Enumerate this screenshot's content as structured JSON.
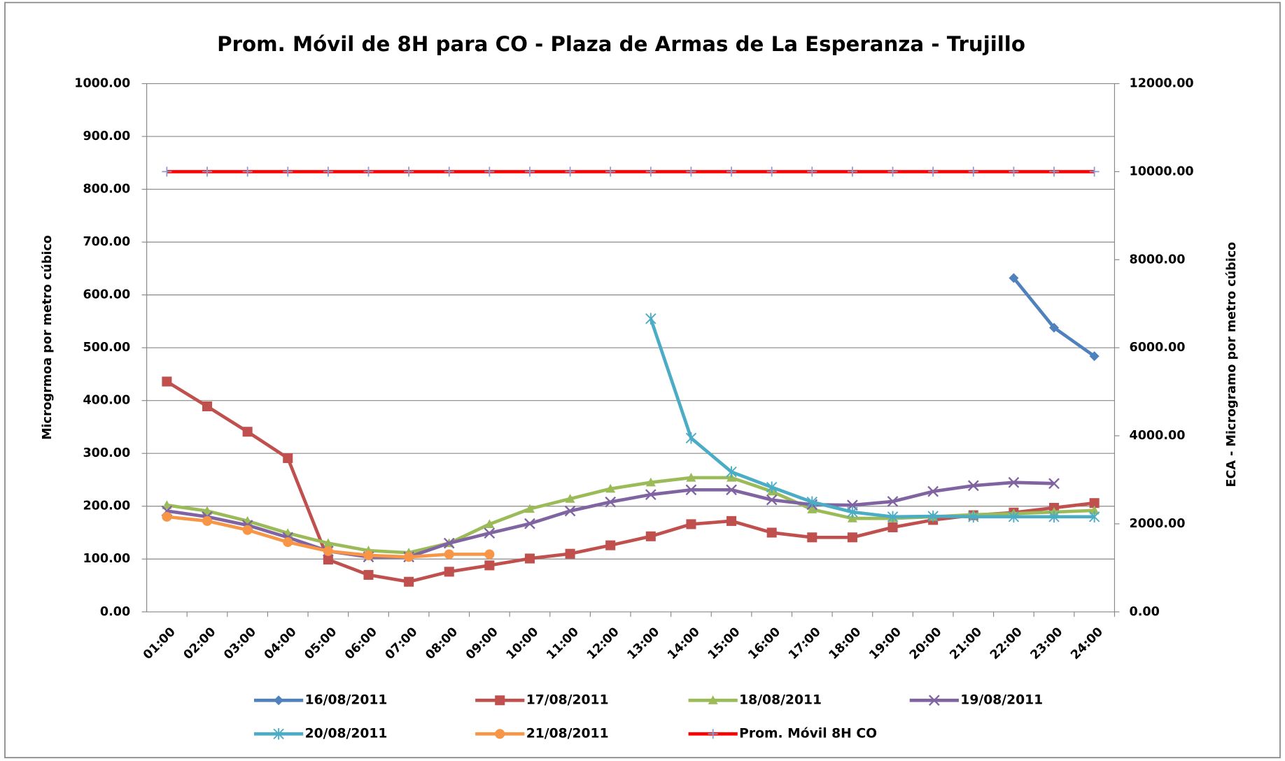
{
  "chart_data": {
    "type": "line",
    "title": "Prom. Móvil de 8H para CO - Plaza de Armas de La Esperanza - Trujillo",
    "ylabel": "Microgrmoa  por metro cúbico",
    "y2label": "ECA - Microgramo  por metro cúbico",
    "categories": [
      "01:00",
      "02:00",
      "03:00",
      "04:00",
      "05:00",
      "06:00",
      "07:00",
      "08:00",
      "09:00",
      "10:00",
      "11:00",
      "12:00",
      "13:00",
      "14:00",
      "15:00",
      "16:00",
      "17:00",
      "18:00",
      "19:00",
      "20:00",
      "21:00",
      "22:00",
      "23:00",
      "24:00"
    ],
    "ylim": [
      0,
      1000
    ],
    "yticks": [
      {
        "value": 0,
        "label": "0.00"
      },
      {
        "value": 100,
        "label": "100.00"
      },
      {
        "value": 200,
        "label": "200.00"
      },
      {
        "value": 300,
        "label": "300.00"
      },
      {
        "value": 400,
        "label": "400.00"
      },
      {
        "value": 500,
        "label": "500.00"
      },
      {
        "value": 600,
        "label": "600.00"
      },
      {
        "value": 700,
        "label": "700.00"
      },
      {
        "value": 800,
        "label": "800.00"
      },
      {
        "value": 900,
        "label": "900.00"
      },
      {
        "value": 1000,
        "label": "1000.00"
      }
    ],
    "y2lim": [
      0,
      12000
    ],
    "y2ticks": [
      {
        "value": 0,
        "label": "0.00"
      },
      {
        "value": 2000,
        "label": "2000.00"
      },
      {
        "value": 4000,
        "label": "4000.00"
      },
      {
        "value": 6000,
        "label": "6000.00"
      },
      {
        "value": 8000,
        "label": "8000.00"
      },
      {
        "value": 10000,
        "label": "10000.00"
      },
      {
        "value": 12000,
        "label": "12000.00"
      }
    ],
    "grid": true,
    "legend": "bottom",
    "series": [
      {
        "name": "16/08/2011",
        "color": "#4F81BD",
        "marker": "diamond",
        "values": [
          null,
          null,
          null,
          null,
          null,
          null,
          null,
          null,
          null,
          null,
          null,
          null,
          null,
          null,
          null,
          null,
          null,
          null,
          null,
          null,
          null,
          632,
          538,
          484
        ]
      },
      {
        "name": "17/08/2011",
        "color": "#C0504D",
        "marker": "square",
        "values": [
          436,
          389,
          341,
          291,
          99,
          70,
          57,
          76,
          88,
          101,
          110,
          126,
          143,
          166,
          172,
          150,
          141,
          141,
          160,
          174,
          183,
          188,
          197,
          206
        ]
      },
      {
        "name": "18/08/2011",
        "color": "#9BBB59",
        "marker": "triangle",
        "values": [
          202,
          191,
          172,
          149,
          130,
          116,
          112,
          130,
          166,
          195,
          214,
          233,
          245,
          254,
          254,
          228,
          194,
          177,
          177,
          180,
          184,
          186,
          189,
          192
        ]
      },
      {
        "name": "19/08/2011",
        "color": "#8064A2",
        "marker": "x",
        "values": [
          191,
          180,
          164,
          141,
          115,
          104,
          104,
          130,
          149,
          167,
          191,
          208,
          222,
          231,
          231,
          212,
          203,
          202,
          209,
          228,
          239,
          245,
          243,
          null
        ]
      },
      {
        "name": "20/08/2011",
        "color": "#4BACC6",
        "marker": "star",
        "values": [
          null,
          null,
          null,
          null,
          null,
          null,
          null,
          null,
          null,
          null,
          null,
          null,
          555,
          329,
          265,
          236,
          208,
          189,
          180,
          181,
          180,
          180,
          180,
          180
        ]
      },
      {
        "name": "21/08/2011",
        "color": "#F79646",
        "marker": "circle",
        "values": [
          180,
          172,
          155,
          132,
          115,
          107,
          104,
          109,
          109,
          null,
          null,
          null,
          null,
          null,
          null,
          null,
          null,
          null,
          null,
          null,
          null,
          null,
          null,
          null
        ]
      },
      {
        "name": "Prom. Móvil 8H CO",
        "color": "#FF0000",
        "marker": "plus",
        "axis": "y2",
        "values": [
          10000,
          10000,
          10000,
          10000,
          10000,
          10000,
          10000,
          10000,
          10000,
          10000,
          10000,
          10000,
          10000,
          10000,
          10000,
          10000,
          10000,
          10000,
          10000,
          10000,
          10000,
          10000,
          10000,
          10000
        ]
      }
    ]
  }
}
